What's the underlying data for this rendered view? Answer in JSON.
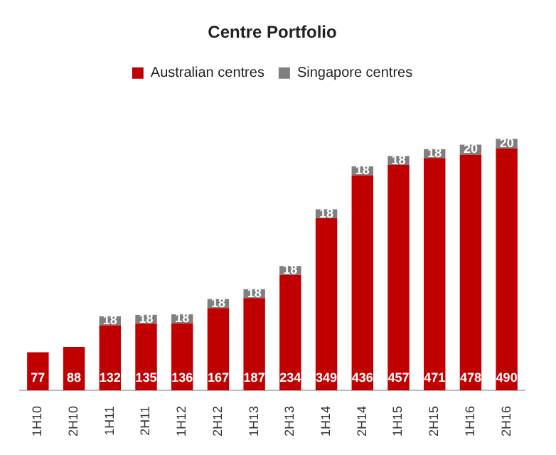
{
  "chart_data": {
    "type": "bar",
    "title": "Centre Portfolio",
    "stacked": true,
    "data_labels": true,
    "legend": "top",
    "grid": false,
    "categories": [
      "1H10",
      "2H10",
      "1H11",
      "2H11",
      "1H12",
      "2H12",
      "1H13",
      "2H13",
      "1H14",
      "2H14",
      "1H15",
      "2H15",
      "1H16",
      "2H16"
    ],
    "series": [
      {
        "name": "Australian centres",
        "color": "#c00000",
        "values": [
          77,
          88,
          132,
          135,
          136,
          167,
          187,
          234,
          349,
          436,
          457,
          471,
          478,
          490
        ]
      },
      {
        "name": "Singapore centres",
        "color": "#7f7f7f",
        "values": [
          null,
          null,
          18,
          18,
          18,
          18,
          18,
          18,
          18,
          18,
          18,
          18,
          20,
          20
        ]
      }
    ]
  }
}
